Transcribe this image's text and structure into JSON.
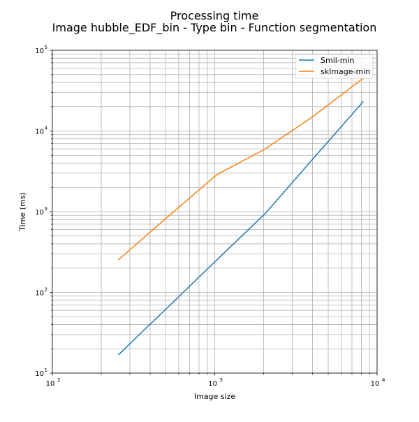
{
  "chart_data": {
    "type": "line",
    "title": "Processing time",
    "subtitle": "Image hubble_EDF_bin - Type bin - Function segmentation",
    "xlabel": "Image size",
    "ylabel": "Time (ms)",
    "xscale": "log",
    "yscale": "log",
    "xlim": [
      100,
      10000
    ],
    "ylim": [
      10,
      100000
    ],
    "grid": "major-and-minor",
    "legend_position": "top-right",
    "x_ticks": [
      {
        "base": "10",
        "exp": "2",
        "value": 100
      },
      {
        "base": "10",
        "exp": "3",
        "value": 1000
      },
      {
        "base": "10",
        "exp": "4",
        "value": 10000
      }
    ],
    "y_ticks": [
      {
        "base": "10",
        "exp": "1",
        "value": 10
      },
      {
        "base": "10",
        "exp": "2",
        "value": 100
      },
      {
        "base": "10",
        "exp": "3",
        "value": 1000
      },
      {
        "base": "10",
        "exp": "4",
        "value": 10000
      },
      {
        "base": "10",
        "exp": "5",
        "value": 100000
      }
    ],
    "x": [
      256,
      512,
      1024,
      2048,
      4096,
      8192
    ],
    "series": [
      {
        "name": "Smil-min",
        "color": "#1f77b4",
        "values": [
          17,
          65,
          250,
          950,
          4700,
          23000
        ]
      },
      {
        "name": "skImage-min",
        "color": "#ff7f0e",
        "values": [
          255,
          860,
          2850,
          6000,
          15500,
          45000
        ]
      }
    ]
  }
}
